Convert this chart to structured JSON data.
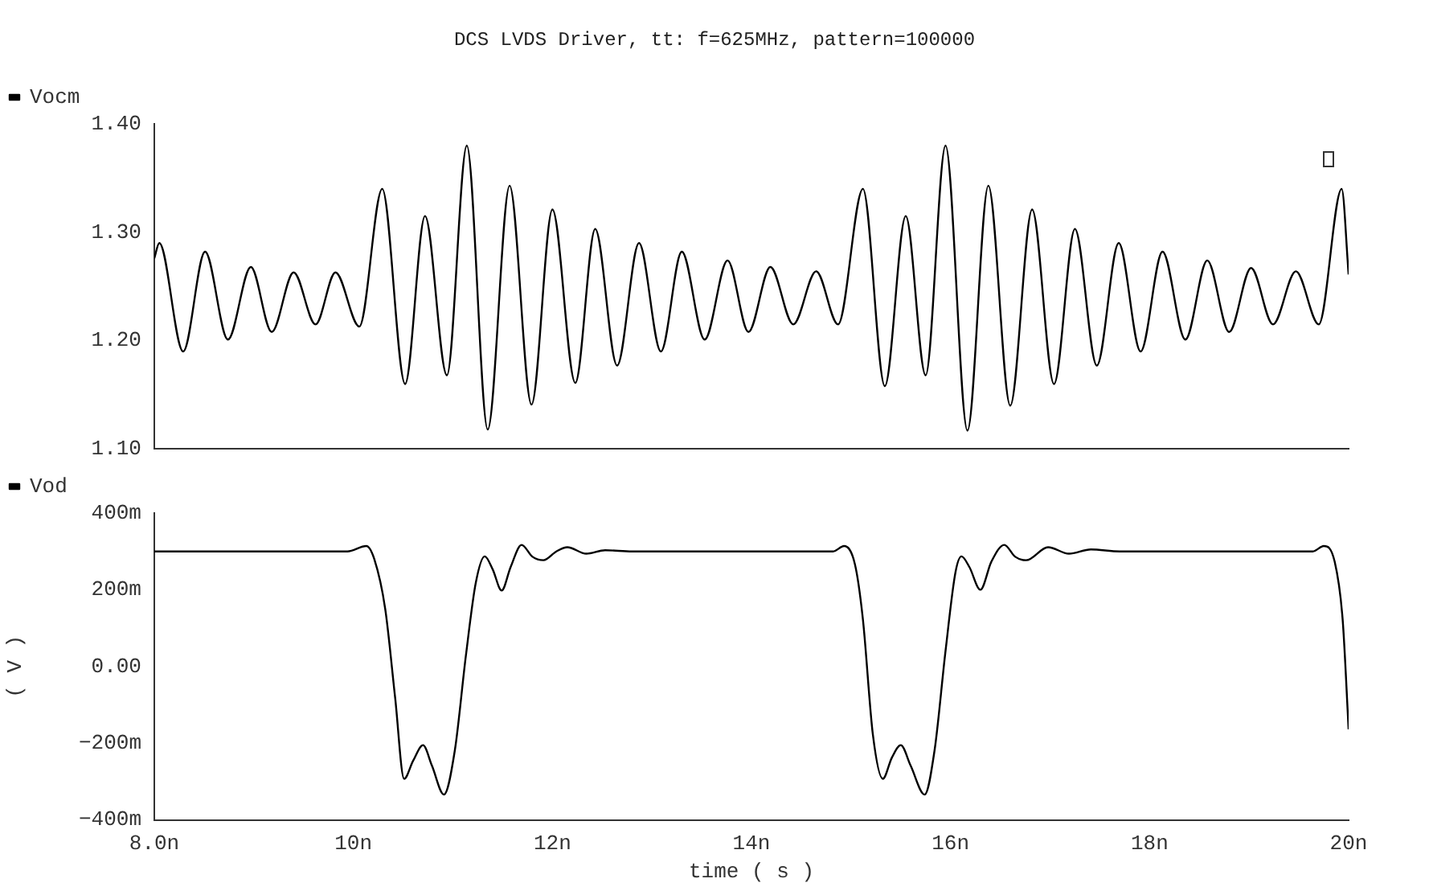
{
  "chart_data": [
    {
      "type": "line",
      "title": "DCS LVDS Driver, tt: f=625MHz, pattern=100000",
      "legend": "top left",
      "grid": false,
      "tick_labels": "y",
      "xlim": [
        8,
        20
      ],
      "xticks": [
        {
          "value": 8,
          "label": null
        },
        {
          "value": 10,
          "label": null
        },
        {
          "value": 12,
          "label": null
        },
        {
          "value": 14,
          "label": null
        },
        {
          "value": 16,
          "label": null
        },
        {
          "value": 18,
          "label": null
        },
        {
          "value": 20,
          "label": null
        }
      ],
      "ylim": [
        1.1,
        1.4
      ],
      "yticks": [
        {
          "value": 1.1,
          "label": "1.10"
        },
        {
          "value": 1.2,
          "label": "1.20"
        },
        {
          "value": 1.3,
          "label": "1.30"
        },
        {
          "value": 1.4,
          "label": "1.40"
        }
      ],
      "series": [
        {
          "name": "Vocm",
          "color": "#000000",
          "x": [
            8.0,
            8.05,
            8.29,
            8.51,
            8.74,
            8.97,
            9.18,
            9.4,
            9.62,
            9.82,
            10.06,
            10.29,
            10.52,
            10.72,
            10.94,
            11.14,
            11.35,
            11.57,
            11.79,
            12.0,
            12.23,
            12.43,
            12.65,
            12.87,
            13.09,
            13.3,
            13.53,
            13.76,
            13.97,
            14.19,
            14.42,
            14.65,
            14.87,
            15.12,
            15.34,
            15.55,
            15.75,
            15.95,
            16.17,
            16.38,
            16.6,
            16.82,
            17.04,
            17.25,
            17.47,
            17.69,
            17.91,
            18.13,
            18.36,
            18.58,
            18.8,
            19.02,
            19.24,
            19.47,
            19.7,
            19.93,
            20.0
          ],
          "values": [
            1.276,
            1.29,
            1.19,
            1.282,
            1.201,
            1.268,
            1.208,
            1.263,
            1.215,
            1.263,
            1.213,
            1.34,
            1.16,
            1.315,
            1.168,
            1.38,
            1.118,
            1.343,
            1.141,
            1.321,
            1.161,
            1.303,
            1.177,
            1.29,
            1.19,
            1.282,
            1.201,
            1.274,
            1.208,
            1.268,
            1.215,
            1.264,
            1.215,
            1.34,
            1.158,
            1.315,
            1.168,
            1.38,
            1.117,
            1.343,
            1.14,
            1.321,
            1.16,
            1.303,
            1.177,
            1.29,
            1.19,
            1.282,
            1.201,
            1.274,
            1.208,
            1.267,
            1.215,
            1.264,
            1.215,
            1.34,
            1.261
          ]
        }
      ]
    },
    {
      "type": "line",
      "xlabel": "time ( s )",
      "ylabel": "( V )",
      "legend": "top left",
      "grid": false,
      "xlim": [
        8,
        20
      ],
      "xticks": [
        {
          "value": 8,
          "label": "8.0n"
        },
        {
          "value": 10,
          "label": "10n"
        },
        {
          "value": 12,
          "label": "12n"
        },
        {
          "value": 14,
          "label": "14n"
        },
        {
          "value": 16,
          "label": "16n"
        },
        {
          "value": 18,
          "label": "18n"
        },
        {
          "value": 20,
          "label": "20n"
        }
      ],
      "ylim": [
        -400,
        400
      ],
      "yticks": [
        {
          "value": -400,
          "label": "−400m"
        },
        {
          "value": -200,
          "label": "−200m"
        },
        {
          "value": 0,
          "label": "0.00"
        },
        {
          "value": 200,
          "label": "200m"
        },
        {
          "value": 400,
          "label": "400m"
        }
      ],
      "series": [
        {
          "name": "Vod",
          "color": "#000000",
          "x": [
            8.0,
            9.94,
            10.13,
            10.21,
            10.32,
            10.42,
            10.51,
            10.6,
            10.7,
            10.79,
            10.91,
            11.02,
            11.13,
            11.23,
            11.32,
            11.4,
            11.49,
            11.58,
            11.69,
            11.8,
            11.91,
            12.04,
            12.15,
            12.34,
            12.53,
            12.8,
            13.39,
            14.82,
            14.93,
            15.04,
            15.12,
            15.22,
            15.32,
            15.41,
            15.5,
            15.6,
            15.74,
            15.84,
            15.95,
            16.05,
            16.11,
            16.19,
            16.3,
            16.41,
            16.54,
            16.65,
            16.76,
            16.98,
            17.19,
            17.41,
            17.7,
            19.64,
            19.75,
            19.86,
            19.94,
            20.0
          ],
          "values": [
            300,
            300,
            314,
            280,
            150,
            -82,
            -293,
            -246,
            -205,
            -259,
            -334,
            -218,
            27,
            218,
            287,
            253,
            198,
            259,
            317,
            286,
            277,
            300,
            311,
            294,
            303,
            300,
            300,
            300,
            314,
            266,
            122,
            -178,
            -293,
            -238,
            -205,
            -259,
            -334,
            -218,
            41,
            246,
            287,
            259,
            200,
            273,
            317,
            286,
            277,
            311,
            294,
            305,
            300,
            300,
            314,
            273,
            122,
            -164
          ]
        }
      ]
    }
  ]
}
